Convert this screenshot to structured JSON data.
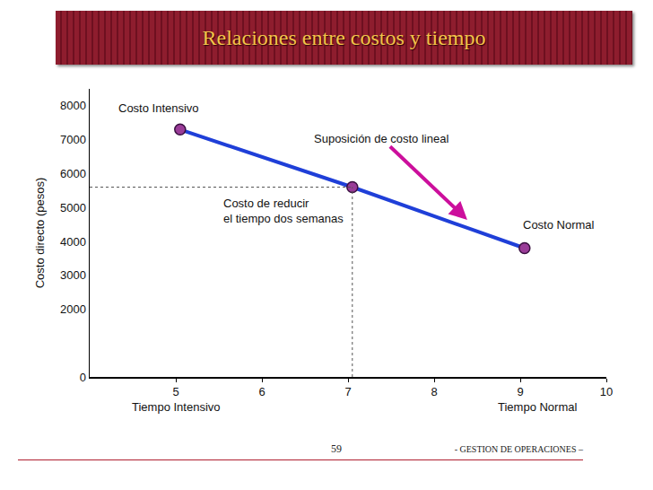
{
  "chart_data": {
    "type": "line",
    "title": "Relaciones entre costos y tiempo",
    "y_label": "Costo directo (pesos)",
    "x": [
      5.05,
      7.05,
      9.05
    ],
    "values": [
      7300,
      5600,
      3800
    ],
    "color": "#1f3fd8",
    "marker": "circle",
    "line_style": "solid",
    "xlim": [
      4,
      10
    ],
    "xticks": [
      5,
      6,
      7,
      8,
      9,
      10
    ],
    "ylim": [
      0,
      8500
    ],
    "yticks": [
      0,
      2000,
      3000,
      4000,
      5000,
      6000,
      7000,
      8000
    ],
    "grid": false,
    "guide_point": 1,
    "annotations": [
      {
        "text": "Costo Intensivo",
        "point": 0
      },
      {
        "lines": [
          "Costo de reducir",
          "el tiempo dos semanas"
        ],
        "point": 1
      },
      {
        "text": "Costo Normal",
        "point": 2
      },
      {
        "text": "Suposición de costo lineal",
        "x": 8.4,
        "y": 4600
      }
    ],
    "x_labels": [
      {
        "text": "Tiempo Intensivo",
        "x": 5
      },
      {
        "text": "Tiempo Normal",
        "x": 9.2
      }
    ],
    "footer": {
      "page": "59",
      "text": "- GESTION DE OPERACIONES –"
    }
  }
}
